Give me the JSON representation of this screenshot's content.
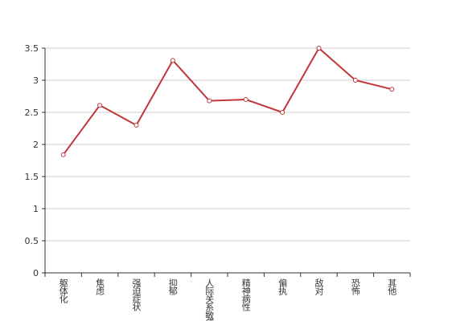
{
  "chart_data": {
    "type": "line",
    "categories": [
      "躯体化",
      "焦虑",
      "强迫症状",
      "抑郁",
      "人际关系敏感",
      "精神病性",
      "偏执",
      "敌对",
      "恐怖",
      "其他"
    ],
    "series": [
      {
        "color": "#c0363a",
        "values": [
          1.84,
          2.61,
          2.3,
          3.31,
          2.68,
          2.7,
          2.5,
          3.5,
          3.0,
          2.86
        ]
      }
    ],
    "ylim": [
      0,
      3.5
    ],
    "yticks": [
      0,
      0.5,
      1,
      1.5,
      2,
      2.5,
      3,
      3.5
    ],
    "grid": true
  }
}
